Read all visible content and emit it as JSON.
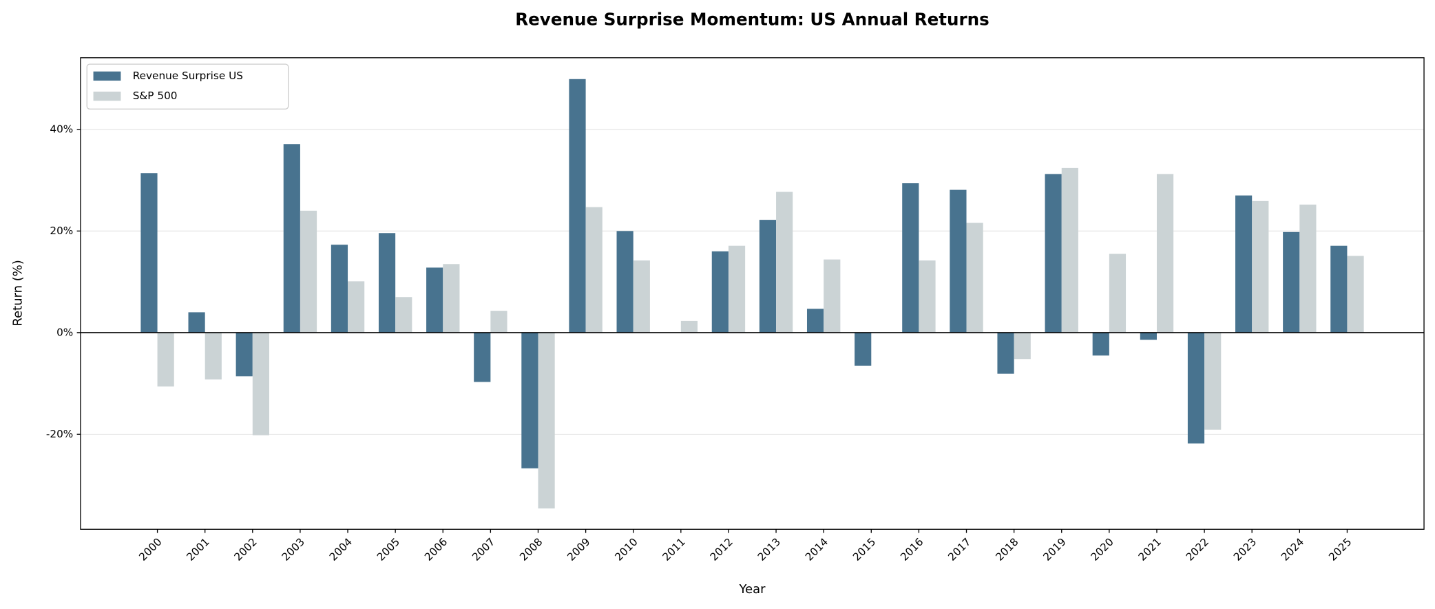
{
  "chart_data": {
    "type": "bar",
    "title": "Revenue Surprise Momentum: US Annual Returns",
    "x_label": "Year",
    "y_label": "Return (%)",
    "categories": [
      "2000",
      "2001",
      "2002",
      "2003",
      "2004",
      "2005",
      "2006",
      "2007",
      "2008",
      "2009",
      "2010",
      "2011",
      "2012",
      "2013",
      "2014",
      "2015",
      "2016",
      "2017",
      "2018",
      "2019",
      "2020",
      "2021",
      "2022",
      "2023",
      "2024",
      "2025"
    ],
    "series": [
      {
        "name": "Revenue Surprise US",
        "color": "#48738f",
        "values": [
          31.4,
          4.0,
          -8.6,
          37.1,
          17.3,
          19.6,
          12.8,
          -9.7,
          -26.7,
          49.9,
          20.0,
          0,
          16.0,
          22.2,
          4.7,
          -6.5,
          29.4,
          28.1,
          -8.1,
          31.2,
          -4.5,
          -1.4,
          -21.8,
          27.0,
          19.8,
          17.1
        ]
      },
      {
        "name": "S&P 500",
        "color": "#cbd3d5",
        "values": [
          -10.6,
          -9.2,
          -20.2,
          24.0,
          10.1,
          7.0,
          13.5,
          4.3,
          -34.6,
          24.7,
          14.2,
          2.3,
          17.1,
          27.7,
          14.4,
          0,
          14.2,
          21.6,
          -5.2,
          32.4,
          15.5,
          31.2,
          -19.1,
          25.9,
          25.2,
          15.1
        ]
      }
    ],
    "ylim": [
      -38.7,
      54.1
    ],
    "yticks": [
      {
        "value": -20,
        "label": "-20%"
      },
      {
        "value": 0,
        "label": "0%"
      },
      {
        "value": 20,
        "label": "20%"
      },
      {
        "value": 40,
        "label": "40%"
      }
    ],
    "grid": true,
    "legend": "upper-left"
  }
}
